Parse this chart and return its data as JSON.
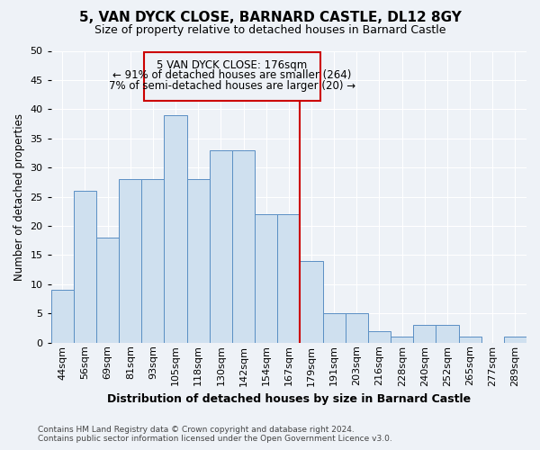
{
  "title1": "5, VAN DYCK CLOSE, BARNARD CASTLE, DL12 8GY",
  "title2": "Size of property relative to detached houses in Barnard Castle",
  "xlabel": "Distribution of detached houses by size in Barnard Castle",
  "ylabel": "Number of detached properties",
  "footnote": "Contains HM Land Registry data © Crown copyright and database right 2024.\nContains public sector information licensed under the Open Government Licence v3.0.",
  "bins": [
    "44sqm",
    "56sqm",
    "69sqm",
    "81sqm",
    "93sqm",
    "105sqm",
    "118sqm",
    "130sqm",
    "142sqm",
    "154sqm",
    "167sqm",
    "179sqm",
    "191sqm",
    "203sqm",
    "216sqm",
    "228sqm",
    "240sqm",
    "252sqm",
    "265sqm",
    "277sqm",
    "289sqm"
  ],
  "values": [
    9,
    26,
    18,
    28,
    28,
    39,
    28,
    33,
    33,
    22,
    22,
    14,
    5,
    5,
    2,
    1,
    3,
    3,
    1,
    0,
    1
  ],
  "annotation_title": "5 VAN DYCK CLOSE: 176sqm",
  "annotation_line1": "← 91% of detached houses are smaller (264)",
  "annotation_line2": "7% of semi-detached houses are larger (20) →",
  "bar_color": "#cfe0ef",
  "bar_edge_color": "#5a8fc4",
  "vline_color": "#cc0000",
  "annotation_box_color": "#cc0000",
  "background_color": "#eef2f7",
  "ylim": [
    0,
    50
  ],
  "yticks": [
    0,
    5,
    10,
    15,
    20,
    25,
    30,
    35,
    40,
    45,
    50
  ],
  "vline_bin_index": 11,
  "title1_fontsize": 11,
  "title2_fontsize": 9,
  "annotation_fontsize": 8.5,
  "ylabel_fontsize": 8.5,
  "xlabel_fontsize": 9,
  "tick_fontsize": 8,
  "footnote_fontsize": 6.5
}
